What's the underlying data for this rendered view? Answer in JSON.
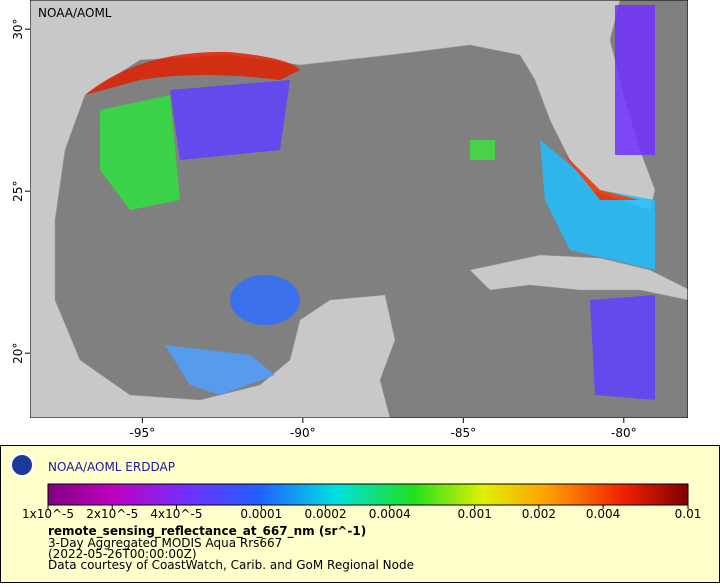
{
  "map": {
    "label": "NOAA/AOML",
    "xlim": [
      -98.5,
      -78
    ],
    "ylim": [
      18,
      30.9
    ],
    "xticks": [
      {
        "value": -95,
        "label": "-95°"
      },
      {
        "value": -90,
        "label": "-90°"
      },
      {
        "value": -85,
        "label": "-85°"
      },
      {
        "value": -80,
        "label": "-80°"
      }
    ],
    "yticks": [
      {
        "value": 20,
        "label": "20°"
      },
      {
        "value": 25,
        "label": "25°"
      },
      {
        "value": 30,
        "label": "30°"
      }
    ]
  },
  "legend": {
    "title": "NOAA/AOML ERDDAP",
    "log_scale": true,
    "range": [
      {
        "value": 1e-05,
        "label": "1x10^-5"
      },
      0.01
    ],
    "ticks": [
      {
        "value": 1e-05,
        "label": "1x10^-5"
      },
      {
        "value": 2e-05,
        "label": "2x10^-5"
      },
      {
        "value": 4e-05,
        "label": "4x10^-5"
      },
      0.0001,
      0.0002,
      0.0004,
      0.001,
      0.002,
      0.004,
      0.01
    ],
    "variable": "remote_sensing_reflectance_at_667_nm (sr^-1)",
    "lines": [
      "3-Day Aggregated MODIS Aqua Rrs667",
      "(2022-05-26T00:00:00Z)",
      "Data courtesy of CoastWatch, Carib. and GoM Regional Node"
    ]
  }
}
